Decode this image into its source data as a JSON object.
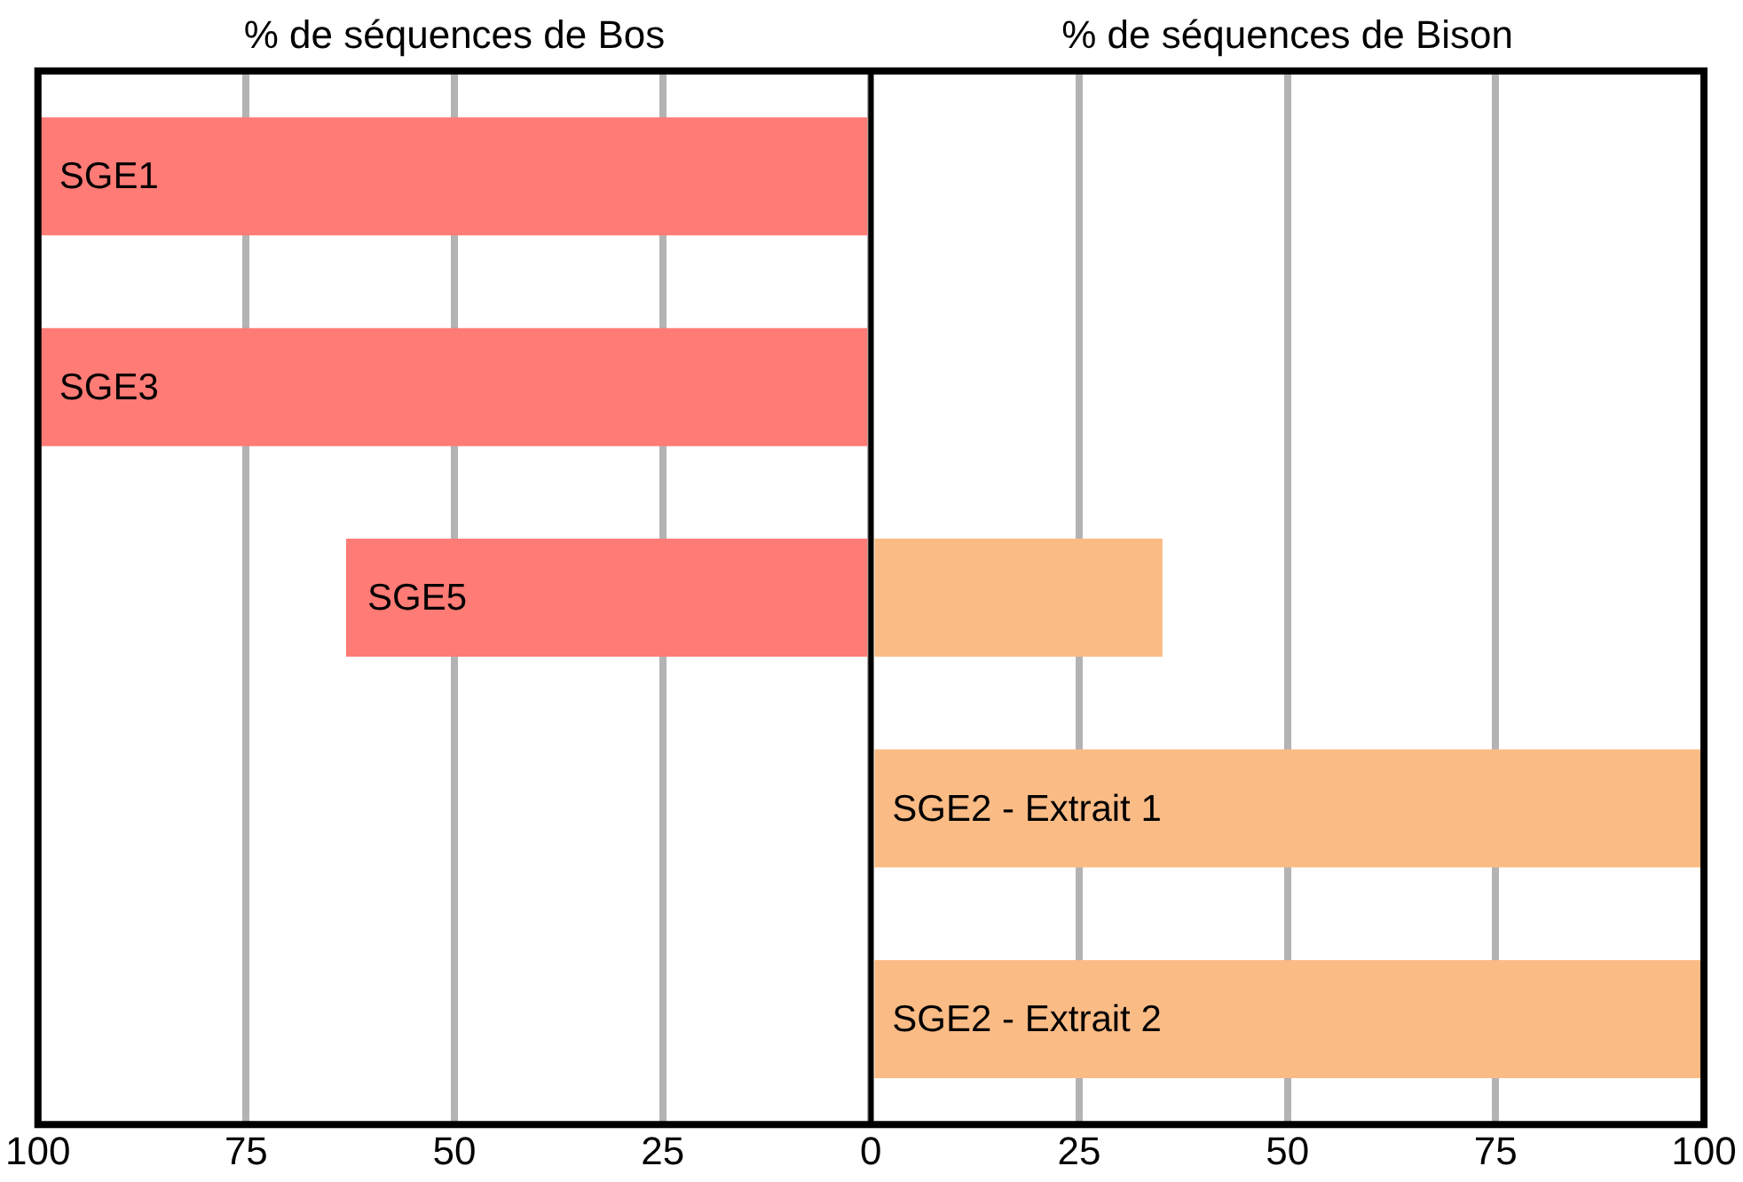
{
  "chart_data": {
    "type": "bar",
    "orientation": "horizontal",
    "stacked": true,
    "categories": [
      "SGE1",
      "SGE3",
      "SGE5",
      "SGE2 - Extrait 1",
      "SGE2 - Extrait 2"
    ],
    "series": [
      {
        "color": "#ff7b76",
        "values": [
          -100,
          -100,
          -63,
          null,
          null
        ]
      },
      {
        "color": "#fbbb85",
        "values": [
          null,
          null,
          35,
          100,
          100
        ]
      }
    ],
    "xlim": [
      -100,
      100
    ],
    "xticks": [
      {
        "value": -100,
        "label": "100"
      },
      {
        "value": -75,
        "label": "75"
      },
      {
        "value": -50,
        "label": "50"
      },
      {
        "value": -25,
        "label": "25"
      },
      0,
      25,
      50,
      75,
      100
    ],
    "tick_labels": "x",
    "grid": "x",
    "legend": false,
    "ref_lines": [
      {
        "axis": "x",
        "value": 0,
        "color": "#000000"
      }
    ],
    "annotations": [
      "% de séquences de Bos",
      "% de séquences de Bison"
    ]
  }
}
